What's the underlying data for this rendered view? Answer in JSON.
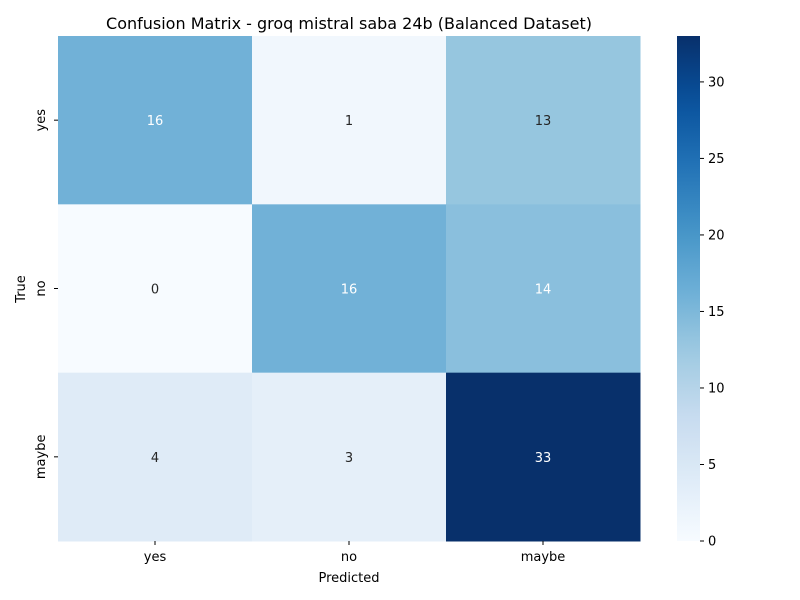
{
  "chart_data": {
    "type": "heatmap",
    "title": "Confusion Matrix - groq mistral saba 24b (Balanced Dataset)",
    "xlabel": "Predicted",
    "ylabel": "True",
    "x_categories": [
      "yes",
      "no",
      "maybe"
    ],
    "y_categories": [
      "yes",
      "no",
      "maybe"
    ],
    "values": [
      [
        16,
        1,
        13
      ],
      [
        0,
        16,
        14
      ],
      [
        4,
        3,
        33
      ]
    ],
    "colormap": "Blues",
    "colorbar": {
      "min": 0,
      "max": 33,
      "ticks": [
        0,
        5,
        10,
        15,
        20,
        25,
        30
      ],
      "tick_labels": [
        "0",
        "5",
        "10",
        "15",
        "20",
        "25",
        "30"
      ]
    },
    "annotations": "cell values shown",
    "colors": {
      "text_dark": "#262626",
      "text_light": "#ffffff"
    }
  }
}
